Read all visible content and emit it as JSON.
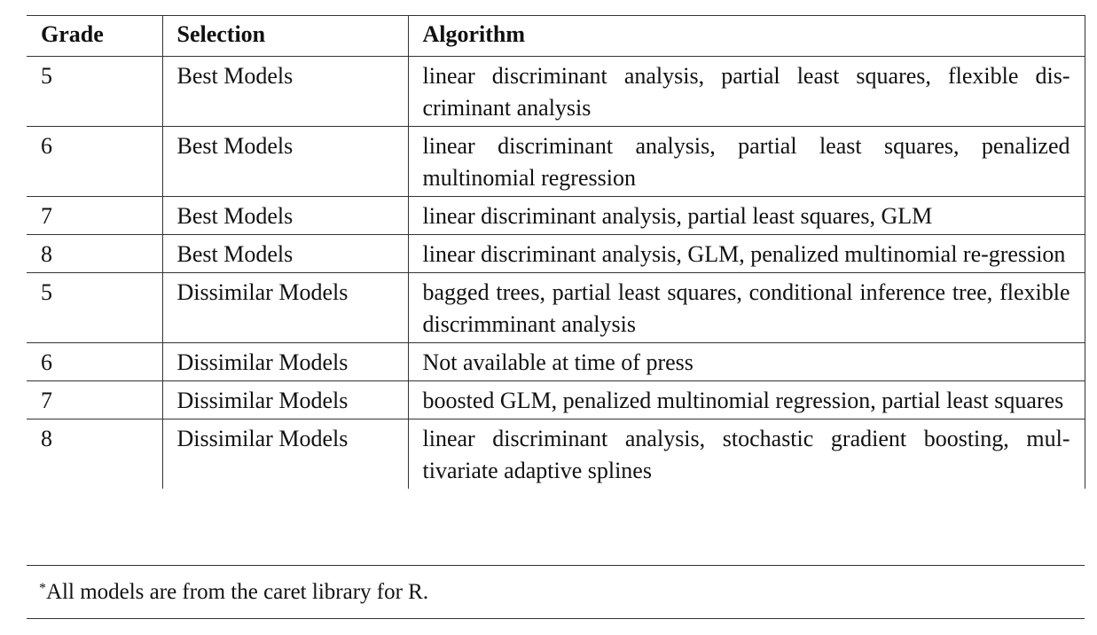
{
  "table": {
    "headers": [
      "Grade",
      "Selection",
      "Algorithm"
    ],
    "rows": [
      {
        "grade": "5",
        "selection": "Best Models",
        "algorithm": "linear discriminant analysis, partial least squares, flexible dis-criminant analysis"
      },
      {
        "grade": "6",
        "selection": "Best Models",
        "algorithm": "linear discriminant analysis, partial least squares, penalized multinomial regression"
      },
      {
        "grade": "7",
        "selection": "Best Models",
        "algorithm": "linear discriminant analysis, partial least squares, GLM"
      },
      {
        "grade": "8",
        "selection": "Best Models",
        "algorithm": "linear discriminant analysis, GLM, penalized multinomial re-gression"
      },
      {
        "grade": "5",
        "selection": "Dissimilar Models",
        "algorithm": "bagged trees, partial least squares, conditional inference tree, flexible discrimminant analysis"
      },
      {
        "grade": "6",
        "selection": "Dissimilar Models",
        "algorithm": "Not available at time of press"
      },
      {
        "grade": "7",
        "selection": "Dissimilar Models",
        "algorithm": "boosted GLM, penalized multinomial regression, partial least squares"
      },
      {
        "grade": "8",
        "selection": "Dissimilar Models",
        "algorithm": "linear discriminant analysis, stochastic gradient boosting, mul-tivariate adaptive splines"
      }
    ]
  },
  "footnote": {
    "marker": "*",
    "text": "All models are from the caret library for R."
  }
}
